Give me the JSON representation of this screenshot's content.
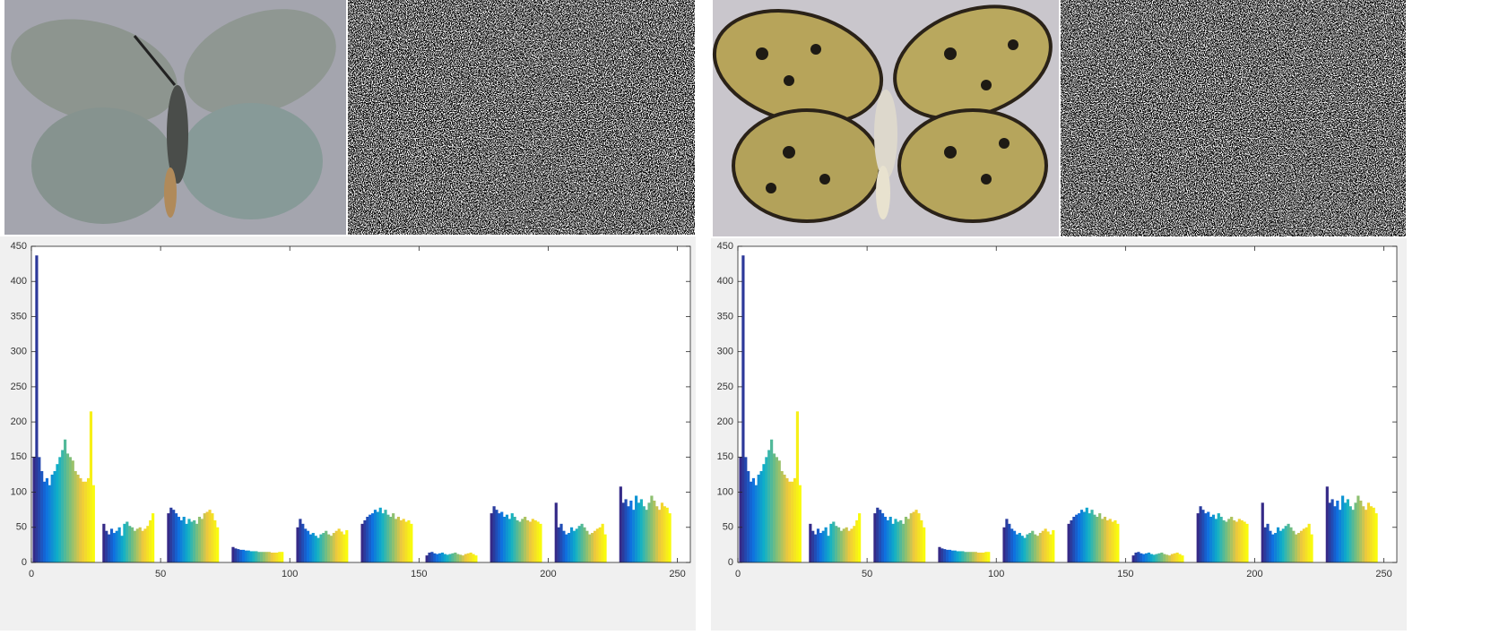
{
  "chart_data": [
    {
      "type": "bar",
      "x": [
        1,
        2,
        3,
        4,
        5,
        6,
        7,
        8,
        9,
        10,
        11,
        12,
        13,
        14,
        15,
        16,
        17,
        18,
        19,
        20,
        21,
        22,
        23,
        24,
        28,
        29,
        30,
        31,
        32,
        33,
        34,
        35,
        36,
        37,
        38,
        39,
        40,
        41,
        42,
        43,
        44,
        45,
        46,
        47,
        53,
        54,
        55,
        56,
        57,
        58,
        59,
        60,
        61,
        62,
        63,
        64,
        65,
        66,
        67,
        68,
        69,
        70,
        71,
        72,
        78,
        79,
        80,
        81,
        82,
        83,
        84,
        85,
        86,
        87,
        88,
        89,
        90,
        91,
        92,
        93,
        94,
        95,
        96,
        97,
        103,
        104,
        105,
        106,
        107,
        108,
        109,
        110,
        111,
        112,
        113,
        114,
        115,
        116,
        117,
        118,
        119,
        120,
        121,
        122,
        128,
        129,
        130,
        131,
        132,
        133,
        134,
        135,
        136,
        137,
        138,
        139,
        140,
        141,
        142,
        143,
        144,
        145,
        146,
        147,
        153,
        154,
        155,
        156,
        157,
        158,
        159,
        160,
        161,
        162,
        163,
        164,
        165,
        166,
        167,
        168,
        169,
        170,
        171,
        172,
        178,
        179,
        180,
        181,
        182,
        183,
        184,
        185,
        186,
        187,
        188,
        189,
        190,
        191,
        192,
        193,
        194,
        195,
        196,
        197,
        203,
        204,
        205,
        206,
        207,
        208,
        209,
        210,
        211,
        212,
        213,
        214,
        215,
        216,
        217,
        218,
        219,
        220,
        221,
        222,
        228,
        229,
        230,
        231,
        232,
        233,
        234,
        235,
        236,
        237,
        238,
        239,
        240,
        241,
        242,
        243,
        244,
        245,
        246,
        247
      ],
      "values": [
        150,
        437,
        150,
        130,
        115,
        120,
        110,
        125,
        130,
        140,
        150,
        160,
        175,
        155,
        150,
        145,
        130,
        125,
        120,
        115,
        115,
        120,
        215,
        110,
        55,
        45,
        40,
        48,
        42,
        45,
        50,
        38,
        55,
        58,
        52,
        50,
        45,
        48,
        50,
        45,
        48,
        52,
        60,
        70,
        70,
        78,
        75,
        70,
        65,
        60,
        65,
        55,
        62,
        58,
        60,
        55,
        65,
        62,
        70,
        72,
        75,
        70,
        60,
        50,
        22,
        20,
        19,
        18,
        18,
        17,
        17,
        16,
        16,
        16,
        15,
        15,
        15,
        15,
        15,
        14,
        14,
        14,
        15,
        15,
        50,
        62,
        55,
        48,
        45,
        40,
        42,
        38,
        35,
        40,
        42,
        45,
        40,
        38,
        42,
        45,
        48,
        44,
        40,
        46,
        55,
        60,
        65,
        68,
        70,
        75,
        72,
        78,
        70,
        75,
        68,
        65,
        70,
        62,
        65,
        60,
        62,
        58,
        60,
        55,
        10,
        14,
        15,
        13,
        12,
        13,
        14,
        12,
        11,
        12,
        13,
        14,
        12,
        11,
        10,
        12,
        13,
        14,
        12,
        10,
        70,
        80,
        75,
        70,
        72,
        65,
        68,
        62,
        70,
        65,
        60,
        58,
        62,
        65,
        60,
        58,
        62,
        60,
        58,
        55,
        85,
        50,
        55,
        45,
        40,
        42,
        50,
        45,
        48,
        52,
        55,
        50,
        45,
        40,
        42,
        45,
        48,
        50,
        55,
        40,
        108,
        85,
        90,
        80,
        88,
        75,
        95,
        85,
        90,
        80,
        75,
        85,
        95,
        88,
        80,
        75,
        85,
        80,
        78,
        70
      ],
      "xlim": [
        0,
        255
      ],
      "ylim": [
        0,
        450
      ],
      "xticks": [
        0,
        50,
        100,
        150,
        200,
        250
      ],
      "yticks": [
        0,
        50,
        100,
        150,
        200,
        250,
        300,
        350,
        400,
        450
      ],
      "colormap": [
        "#352a87",
        "#0f6de0",
        "#0fb0c8",
        "#7cbf7b",
        "#f0c83c",
        "#f9fb0e"
      ]
    },
    {
      "type": "bar",
      "x": [
        1,
        2,
        3,
        4,
        5,
        6,
        7,
        8,
        9,
        10,
        11,
        12,
        13,
        14,
        15,
        16,
        17,
        18,
        19,
        20,
        21,
        22,
        23,
        24,
        28,
        29,
        30,
        31,
        32,
        33,
        34,
        35,
        36,
        37,
        38,
        39,
        40,
        41,
        42,
        43,
        44,
        45,
        46,
        47,
        53,
        54,
        55,
        56,
        57,
        58,
        59,
        60,
        61,
        62,
        63,
        64,
        65,
        66,
        67,
        68,
        69,
        70,
        71,
        72,
        78,
        79,
        80,
        81,
        82,
        83,
        84,
        85,
        86,
        87,
        88,
        89,
        90,
        91,
        92,
        93,
        94,
        95,
        96,
        97,
        103,
        104,
        105,
        106,
        107,
        108,
        109,
        110,
        111,
        112,
        113,
        114,
        115,
        116,
        117,
        118,
        119,
        120,
        121,
        122,
        128,
        129,
        130,
        131,
        132,
        133,
        134,
        135,
        136,
        137,
        138,
        139,
        140,
        141,
        142,
        143,
        144,
        145,
        146,
        147,
        153,
        154,
        155,
        156,
        157,
        158,
        159,
        160,
        161,
        162,
        163,
        164,
        165,
        166,
        167,
        168,
        169,
        170,
        171,
        172,
        178,
        179,
        180,
        181,
        182,
        183,
        184,
        185,
        186,
        187,
        188,
        189,
        190,
        191,
        192,
        193,
        194,
        195,
        196,
        197,
        203,
        204,
        205,
        206,
        207,
        208,
        209,
        210,
        211,
        212,
        213,
        214,
        215,
        216,
        217,
        218,
        219,
        220,
        221,
        222,
        228,
        229,
        230,
        231,
        232,
        233,
        234,
        235,
        236,
        237,
        238,
        239,
        240,
        241,
        242,
        243,
        244,
        245,
        246,
        247
      ],
      "values": [
        150,
        437,
        150,
        130,
        115,
        120,
        110,
        125,
        130,
        140,
        150,
        160,
        175,
        155,
        150,
        145,
        130,
        125,
        120,
        115,
        115,
        120,
        215,
        110,
        55,
        45,
        40,
        48,
        42,
        45,
        50,
        38,
        55,
        58,
        52,
        50,
        45,
        48,
        50,
        45,
        48,
        52,
        60,
        70,
        70,
        78,
        75,
        70,
        65,
        60,
        65,
        55,
        62,
        58,
        60,
        55,
        65,
        62,
        70,
        72,
        75,
        70,
        60,
        50,
        22,
        20,
        19,
        18,
        18,
        17,
        17,
        16,
        16,
        16,
        15,
        15,
        15,
        15,
        15,
        14,
        14,
        14,
        15,
        15,
        50,
        62,
        55,
        48,
        45,
        40,
        42,
        38,
        35,
        40,
        42,
        45,
        40,
        38,
        42,
        45,
        48,
        44,
        40,
        46,
        55,
        60,
        65,
        68,
        70,
        75,
        72,
        78,
        70,
        75,
        68,
        65,
        70,
        62,
        65,
        60,
        62,
        58,
        60,
        55,
        10,
        14,
        15,
        13,
        12,
        13,
        14,
        12,
        11,
        12,
        13,
        14,
        12,
        11,
        10,
        12,
        13,
        14,
        12,
        10,
        70,
        80,
        75,
        70,
        72,
        65,
        68,
        62,
        70,
        65,
        60,
        58,
        62,
        65,
        60,
        58,
        62,
        60,
        58,
        55,
        85,
        50,
        55,
        45,
        40,
        42,
        50,
        45,
        48,
        52,
        55,
        50,
        45,
        40,
        42,
        45,
        48,
        50,
        55,
        40,
        108,
        85,
        90,
        80,
        88,
        75,
        95,
        85,
        90,
        80,
        75,
        85,
        95,
        88,
        80,
        75,
        85,
        80,
        78,
        70
      ],
      "xlim": [
        0,
        255
      ],
      "ylim": [
        0,
        450
      ],
      "xticks": [
        0,
        50,
        100,
        150,
        200,
        250
      ],
      "yticks": [
        0,
        50,
        100,
        150,
        200,
        250,
        300,
        350,
        400,
        450
      ],
      "colormap": [
        "#352a87",
        "#0f6de0",
        "#0fb0c8",
        "#7cbf7b",
        "#f0c83c",
        "#f9fb0e"
      ]
    }
  ]
}
